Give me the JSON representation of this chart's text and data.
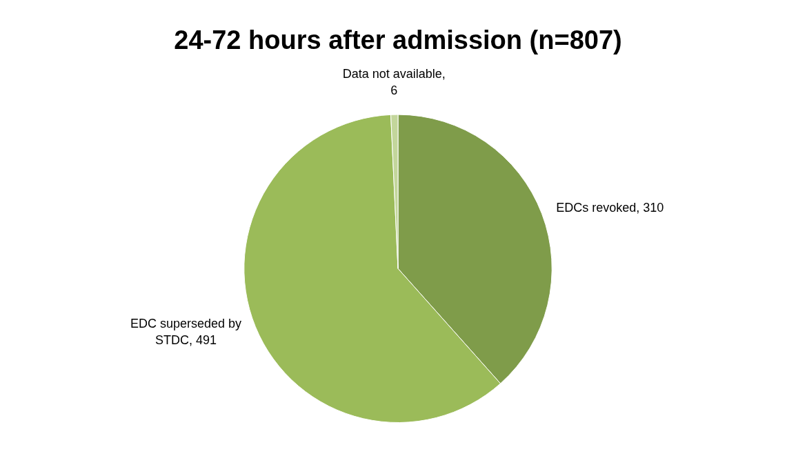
{
  "chart_data": {
    "type": "pie",
    "title": "24-72 hours after admission (n=807)",
    "categories": [
      "EDCs revoked",
      "EDC superseded by STDC",
      "Data not available"
    ],
    "values": [
      310,
      491,
      6
    ],
    "colors": [
      "#7f9c4a",
      "#9bbb59",
      "#c3d69b"
    ],
    "value_labels": [
      ", 310",
      ", 491",
      ", 6"
    ],
    "legend": false
  }
}
